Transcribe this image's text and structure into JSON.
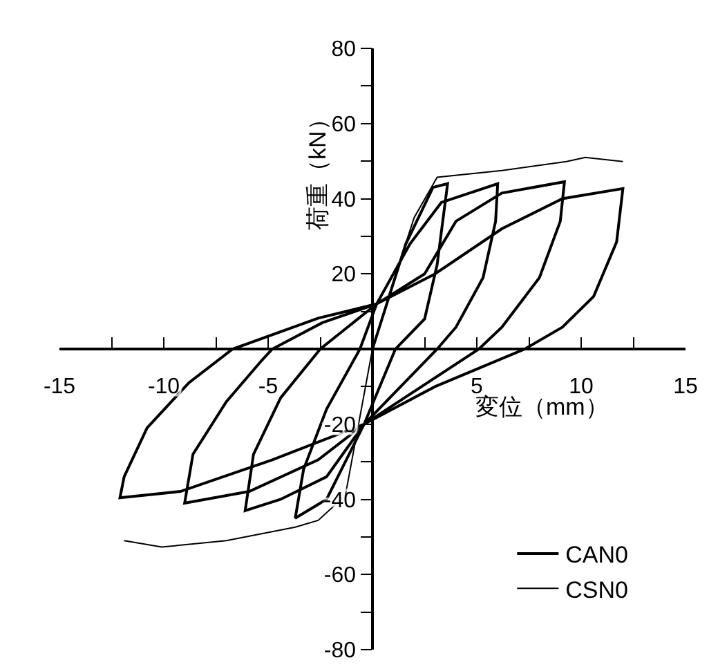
{
  "chart_data": {
    "type": "line",
    "xlabel": "変位（mm）",
    "ylabel": "荷重（kN）",
    "xlim": [
      -15,
      15
    ],
    "ylim": [
      -80,
      80
    ],
    "xticks": [
      -15,
      {
        "value": -12.5,
        "label": null
      },
      -10,
      {
        "value": -7.5,
        "label": null
      },
      -5,
      {
        "value": -2.5,
        "label": null
      },
      {
        "value": 0,
        "label": null
      },
      {
        "value": 2.5,
        "label": null
      },
      5,
      {
        "value": 7.5,
        "label": null
      },
      10,
      {
        "value": 12.5,
        "label": null
      },
      15
    ],
    "yticks": [
      -80,
      {
        "value": -70,
        "label": null
      },
      -60,
      {
        "value": -50,
        "label": null
      },
      -40,
      {
        "value": -30,
        "label": null
      },
      -20,
      {
        "value": -10,
        "label": null
      },
      {
        "value": 10,
        "label": null
      },
      20,
      {
        "value": 30,
        "label": null
      },
      40,
      {
        "value": 50,
        "label": null
      },
      60,
      {
        "value": 70,
        "label": null
      },
      80
    ],
    "grid": false,
    "legend": "bottom right",
    "series": [
      {
        "name": "CAN0",
        "color": "#000000",
        "x": [
          0,
          1.6,
          2.9,
          3.6,
          3.1,
          2.5,
          1.1,
          -0.4,
          -2.2,
          -3.7,
          -3.3,
          -2.2,
          -0.6,
          0.2,
          1.8,
          3.3,
          6.0,
          5.9,
          5.3,
          4,
          3.1,
          -0.4,
          -2.2,
          -4.4,
          -6.1,
          -5.7,
          -4.4,
          -2.5,
          0.2,
          2.5,
          4,
          6.2,
          9.2,
          9,
          8,
          6.2,
          5.1,
          -0.4,
          -2.6,
          -5.9,
          -9,
          -8.6,
          -7,
          -5.3,
          -4.8,
          -2.4,
          0.2,
          3,
          6.2,
          9.1,
          12,
          11.7,
          10.6,
          9.1,
          7.3,
          3,
          -0.4,
          -4.8,
          -9.2,
          -12.1,
          -11.9,
          -10.8,
          -8.8,
          -6.7,
          -2.6,
          0.2
        ],
        "values": [
          0,
          28,
          43,
          44,
          22.5,
          8,
          0,
          -20,
          -40,
          -45,
          -32,
          -16,
          0,
          12,
          28,
          39,
          44,
          34,
          19,
          5.8,
          0,
          -20,
          -34,
          -40,
          -43,
          -28,
          -13,
          0,
          12,
          20,
          34,
          41.5,
          44.5,
          34,
          19,
          5.8,
          0,
          -20,
          -29.5,
          -37.9,
          -41,
          -28,
          -14,
          -3,
          0,
          7,
          12,
          20,
          32,
          40,
          42.7,
          28.5,
          14,
          5.8,
          0,
          -10,
          -20,
          -29.5,
          -37.9,
          -39.6,
          -34,
          -21,
          -9,
          0,
          8.2,
          12
        ]
      },
      {
        "name": "CSN0",
        "color": "#000000",
        "x": [
          -11.9,
          -10.1,
          -7,
          -3.7,
          -2.6,
          -1.3,
          0,
          null,
          0,
          1,
          2,
          3.1,
          6.2,
          9.3,
          10.2,
          12
        ],
        "values": [
          -51,
          -52.7,
          -51,
          -47.4,
          -45.6,
          -39,
          0,
          null,
          0,
          18,
          35,
          45.7,
          47.5,
          49.9,
          51,
          49.9
        ]
      }
    ]
  }
}
